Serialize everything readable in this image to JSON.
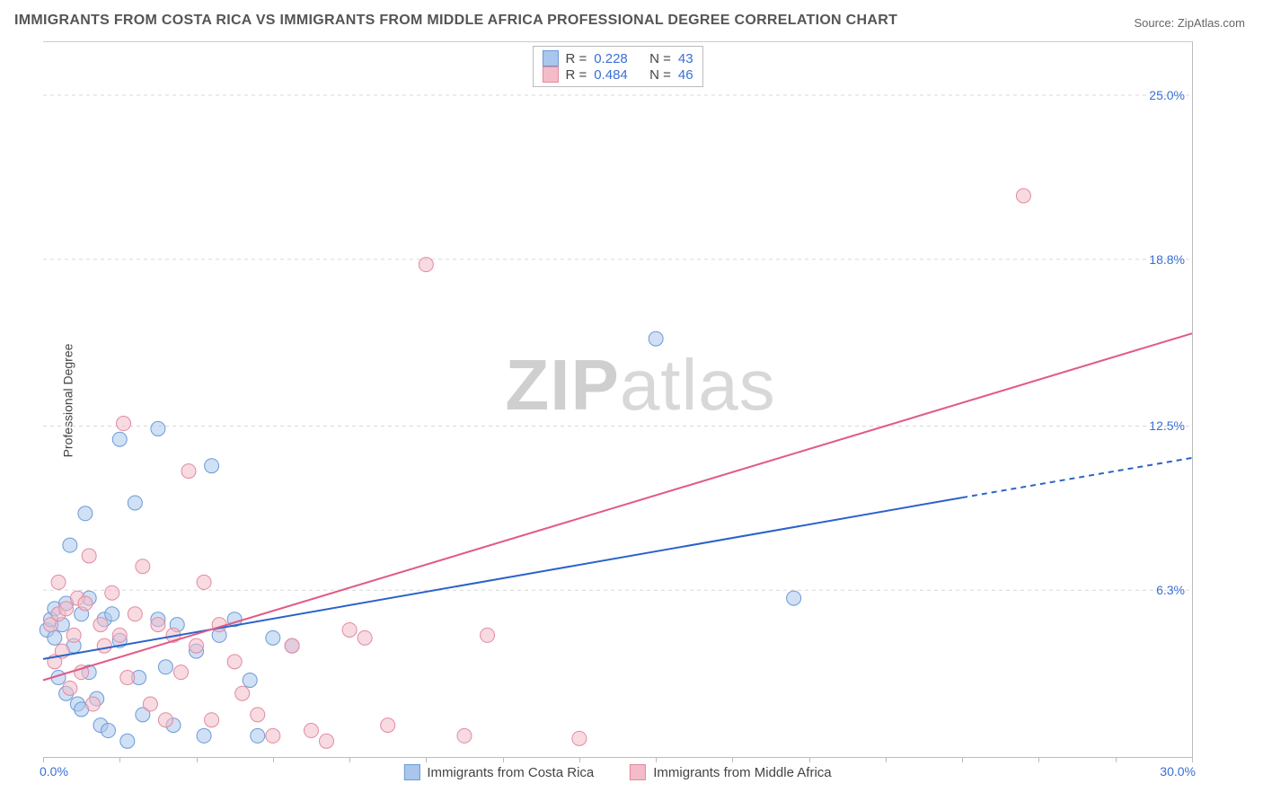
{
  "title": "IMMIGRANTS FROM COSTA RICA VS IMMIGRANTS FROM MIDDLE AFRICA PROFESSIONAL DEGREE CORRELATION CHART",
  "source_label": "Source: ",
  "source_name": "ZipAtlas.com",
  "y_axis_label": "Professional Degree",
  "watermark_a": "ZIP",
  "watermark_b": "atlas",
  "chart": {
    "type": "scatter",
    "background_color": "#ffffff",
    "grid_color": "#d8d8d8",
    "axis_color": "#bbbbbb",
    "xlim": [
      0,
      30
    ],
    "ylim": [
      0,
      27
    ],
    "x_min_label": "0.0%",
    "x_max_label": "30.0%",
    "x_tick_positions": [
      0,
      2,
      4,
      6,
      8,
      10,
      12,
      14,
      16,
      18,
      20,
      22,
      24,
      26,
      28,
      30
    ],
    "y_gridlines": [
      6.3,
      12.5,
      18.8,
      25.0
    ],
    "y_tick_labels": [
      "6.3%",
      "12.5%",
      "18.8%",
      "25.0%"
    ],
    "point_radius": 8,
    "point_opacity": 0.55,
    "series": [
      {
        "name": "Immigrants from Costa Rica",
        "fill_color": "#a9c6ec",
        "stroke_color": "#6c9ad6",
        "r_label": "R  = ",
        "r_value": "0.228",
        "n_label": "N  = ",
        "n_value": "43",
        "trend": {
          "x1": 0,
          "y1": 3.7,
          "x2": 24,
          "y2": 9.8,
          "color": "#2b63c9",
          "width": 2
        },
        "trend_ext": {
          "x1": 24,
          "y1": 9.8,
          "x2": 30,
          "y2": 11.3,
          "color": "#2b63c9",
          "width": 2,
          "dash": "6,5"
        },
        "points": [
          [
            0.1,
            4.8
          ],
          [
            0.2,
            5.2
          ],
          [
            0.3,
            4.5
          ],
          [
            0.3,
            5.6
          ],
          [
            0.4,
            3.0
          ],
          [
            0.5,
            5.0
          ],
          [
            0.6,
            2.4
          ],
          [
            0.6,
            5.8
          ],
          [
            0.8,
            4.2
          ],
          [
            0.9,
            2.0
          ],
          [
            1.0,
            5.4
          ],
          [
            1.0,
            1.8
          ],
          [
            1.1,
            9.2
          ],
          [
            1.2,
            6.0
          ],
          [
            1.2,
            3.2
          ],
          [
            1.4,
            2.2
          ],
          [
            1.5,
            1.2
          ],
          [
            1.6,
            5.2
          ],
          [
            1.7,
            1.0
          ],
          [
            1.8,
            5.4
          ],
          [
            2.0,
            12.0
          ],
          [
            2.0,
            4.4
          ],
          [
            2.2,
            0.6
          ],
          [
            2.4,
            9.6
          ],
          [
            2.5,
            3.0
          ],
          [
            2.6,
            1.6
          ],
          [
            3.0,
            12.4
          ],
          [
            3.0,
            5.2
          ],
          [
            3.2,
            3.4
          ],
          [
            3.4,
            1.2
          ],
          [
            3.5,
            5.0
          ],
          [
            4.0,
            4.0
          ],
          [
            4.2,
            0.8
          ],
          [
            4.4,
            11.0
          ],
          [
            4.6,
            4.6
          ],
          [
            5.0,
            5.2
          ],
          [
            5.4,
            2.9
          ],
          [
            5.6,
            0.8
          ],
          [
            6.0,
            4.5
          ],
          [
            6.5,
            4.2
          ],
          [
            16.0,
            15.8
          ],
          [
            19.6,
            6.0
          ],
          [
            0.7,
            8.0
          ]
        ]
      },
      {
        "name": "Immigrants from Middle Africa",
        "fill_color": "#f3bcc8",
        "stroke_color": "#e38aa0",
        "r_label": "R  = ",
        "r_value": "0.484",
        "n_label": "N  = ",
        "n_value": "46",
        "trend": {
          "x1": 0,
          "y1": 2.9,
          "x2": 30,
          "y2": 16.0,
          "color": "#e05a86",
          "width": 2
        },
        "points": [
          [
            0.2,
            5.0
          ],
          [
            0.3,
            3.6
          ],
          [
            0.4,
            5.4
          ],
          [
            0.5,
            4.0
          ],
          [
            0.6,
            5.6
          ],
          [
            0.7,
            2.6
          ],
          [
            0.8,
            4.6
          ],
          [
            0.9,
            6.0
          ],
          [
            1.0,
            3.2
          ],
          [
            1.1,
            5.8
          ],
          [
            1.2,
            7.6
          ],
          [
            1.3,
            2.0
          ],
          [
            1.5,
            5.0
          ],
          [
            1.6,
            4.2
          ],
          [
            1.8,
            6.2
          ],
          [
            2.0,
            4.6
          ],
          [
            2.1,
            12.6
          ],
          [
            2.2,
            3.0
          ],
          [
            2.4,
            5.4
          ],
          [
            2.6,
            7.2
          ],
          [
            2.8,
            2.0
          ],
          [
            3.0,
            5.0
          ],
          [
            3.2,
            1.4
          ],
          [
            3.4,
            4.6
          ],
          [
            3.6,
            3.2
          ],
          [
            3.8,
            10.8
          ],
          [
            4.0,
            4.2
          ],
          [
            4.2,
            6.6
          ],
          [
            4.4,
            1.4
          ],
          [
            4.6,
            5.0
          ],
          [
            5.0,
            3.6
          ],
          [
            5.2,
            2.4
          ],
          [
            5.6,
            1.6
          ],
          [
            6.0,
            0.8
          ],
          [
            6.5,
            4.2
          ],
          [
            7.0,
            1.0
          ],
          [
            7.4,
            0.6
          ],
          [
            8.0,
            4.8
          ],
          [
            8.4,
            4.5
          ],
          [
            9.0,
            1.2
          ],
          [
            10.0,
            18.6
          ],
          [
            11.0,
            0.8
          ],
          [
            11.6,
            4.6
          ],
          [
            14.0,
            0.7
          ],
          [
            25.6,
            21.2
          ],
          [
            0.4,
            6.6
          ]
        ]
      }
    ]
  }
}
